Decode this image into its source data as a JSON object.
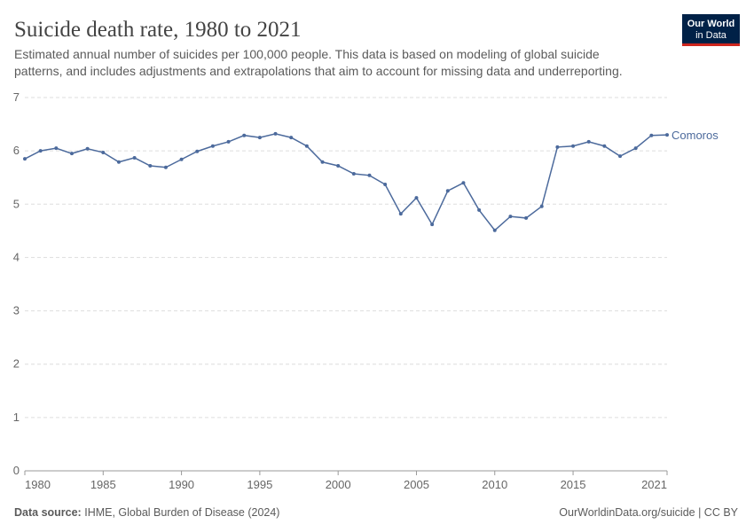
{
  "chart_data": {
    "type": "line",
    "title": "Suicide death rate, 1980 to 2021",
    "subtitle": [
      "Estimated annual number of suicides per 100,000 people. This data is based on modeling of global suicide",
      "patterns, and includes adjustments and extrapolations that aim to account for missing data and underreporting."
    ],
    "logo": [
      "Our World",
      "in Data"
    ],
    "source_label": "Data source:",
    "source": "IHME, Global Burden of Disease (2024)",
    "url": "OurWorldinData.org/suicide | CC BY",
    "x": [
      1980,
      1981,
      1982,
      1983,
      1984,
      1985,
      1986,
      1987,
      1988,
      1989,
      1990,
      1991,
      1992,
      1993,
      1994,
      1995,
      1996,
      1997,
      1998,
      1999,
      2000,
      2001,
      2002,
      2003,
      2004,
      2005,
      2006,
      2007,
      2008,
      2009,
      2010,
      2011,
      2012,
      2013,
      2014,
      2015,
      2016,
      2017,
      2018,
      2019,
      2020,
      2021
    ],
    "series": [
      {
        "name": "Comoros",
        "color": "#4c6a9c",
        "values": [
          5.85,
          6.0,
          6.05,
          5.95,
          6.04,
          5.97,
          5.79,
          5.87,
          5.72,
          5.69,
          5.84,
          5.99,
          6.09,
          6.17,
          6.29,
          6.25,
          6.32,
          6.25,
          6.09,
          5.79,
          5.72,
          5.57,
          5.54,
          5.37,
          4.82,
          5.12,
          4.62,
          5.25,
          5.4,
          4.89,
          4.51,
          4.77,
          4.74,
          4.96,
          6.07,
          6.09,
          6.17,
          6.09,
          5.9,
          6.05,
          6.29,
          6.3
        ]
      }
    ],
    "xlim": [
      1980,
      2021
    ],
    "xticks": [
      1980,
      1985,
      1990,
      1995,
      2000,
      2005,
      2010,
      2015,
      2021
    ],
    "ylim": [
      0,
      7
    ],
    "yticks": [
      0,
      1,
      2,
      3,
      4,
      5,
      6,
      7
    ],
    "grid": true
  }
}
